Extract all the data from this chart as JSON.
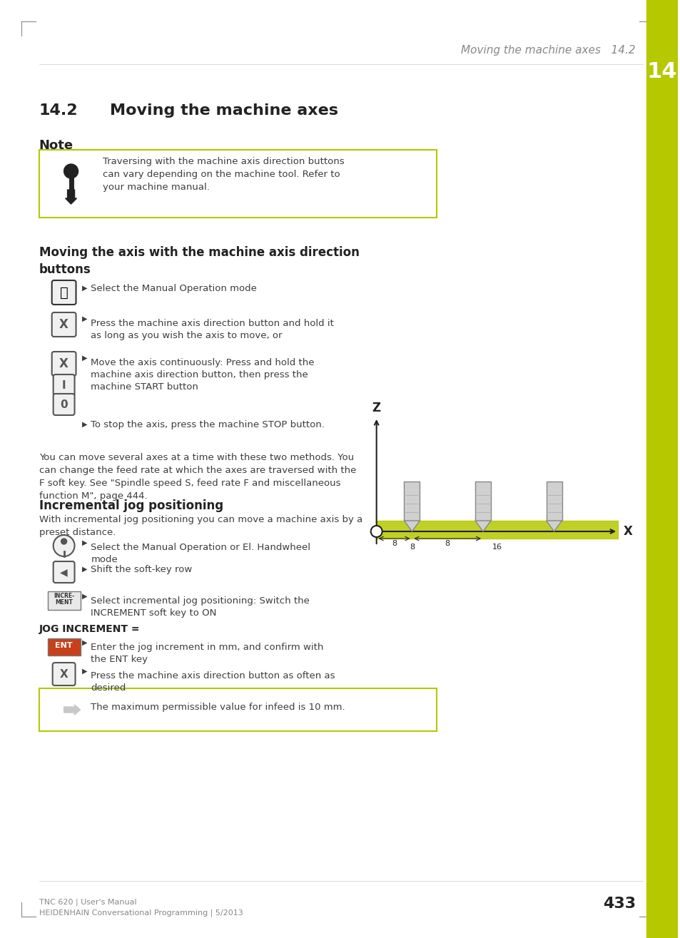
{
  "page_bg": "#ffffff",
  "accent_color": "#b5c800",
  "header_text": "Moving the machine axes   14.2",
  "header_num": "14",
  "section_num": "14.2",
  "section_title": "Moving the machine axes",
  "note_label": "Note",
  "note_text": "Traversing with the machine axis direction buttons\ncan vary depending on the machine tool. Refer to\nyour machine manual.",
  "subsection1_title": "Moving the axis with the machine axis direction\nbuttons",
  "bullet1": "Select the Manual Operation mode",
  "bullet2": "Press the machine axis direction button and hold it\nas long as you wish the axis to move, or",
  "bullet3": "Move the axis continuously: Press and hold the\nmachine axis direction button, then press the\nmachine START button",
  "bullet4": "To stop the axis, press the machine STOP button.",
  "body_text": "You can move several axes at a time with these two methods. You\ncan change the feed rate at which the axes are traversed with the\nF soft key. See \"Spindle speed S, feed rate F and miscellaneous\nfunction M\", page 444.",
  "subsection2_title": "Incremental jog positioning",
  "inc_intro": "With incremental jog positioning you can move a machine axis by a\npreset distance.",
  "inc_bullet1": "Select the Manual Operation or El. Handwheel\nmode",
  "inc_bullet2": "Shift the soft-key row",
  "inc_bullet3": "Select incremental jog positioning: Switch the\nINCREMENT soft key to ON",
  "jog_label": "JOG INCREMENT =",
  "ent_bullet": "Enter the jog increment in mm, and confirm with\nthe ENT key",
  "x_bullet": "Press the machine axis direction button as often as\ndesired",
  "note2_text": "The maximum permissible value for infeed is 10 mm.",
  "footer_line1": "TNC 620 | User's Manual",
  "footer_line2": "HEIDENHAIN Conversational Programming | 5/2013",
  "page_num": "433",
  "text_color": "#3d3d3d",
  "dark_color": "#222222"
}
